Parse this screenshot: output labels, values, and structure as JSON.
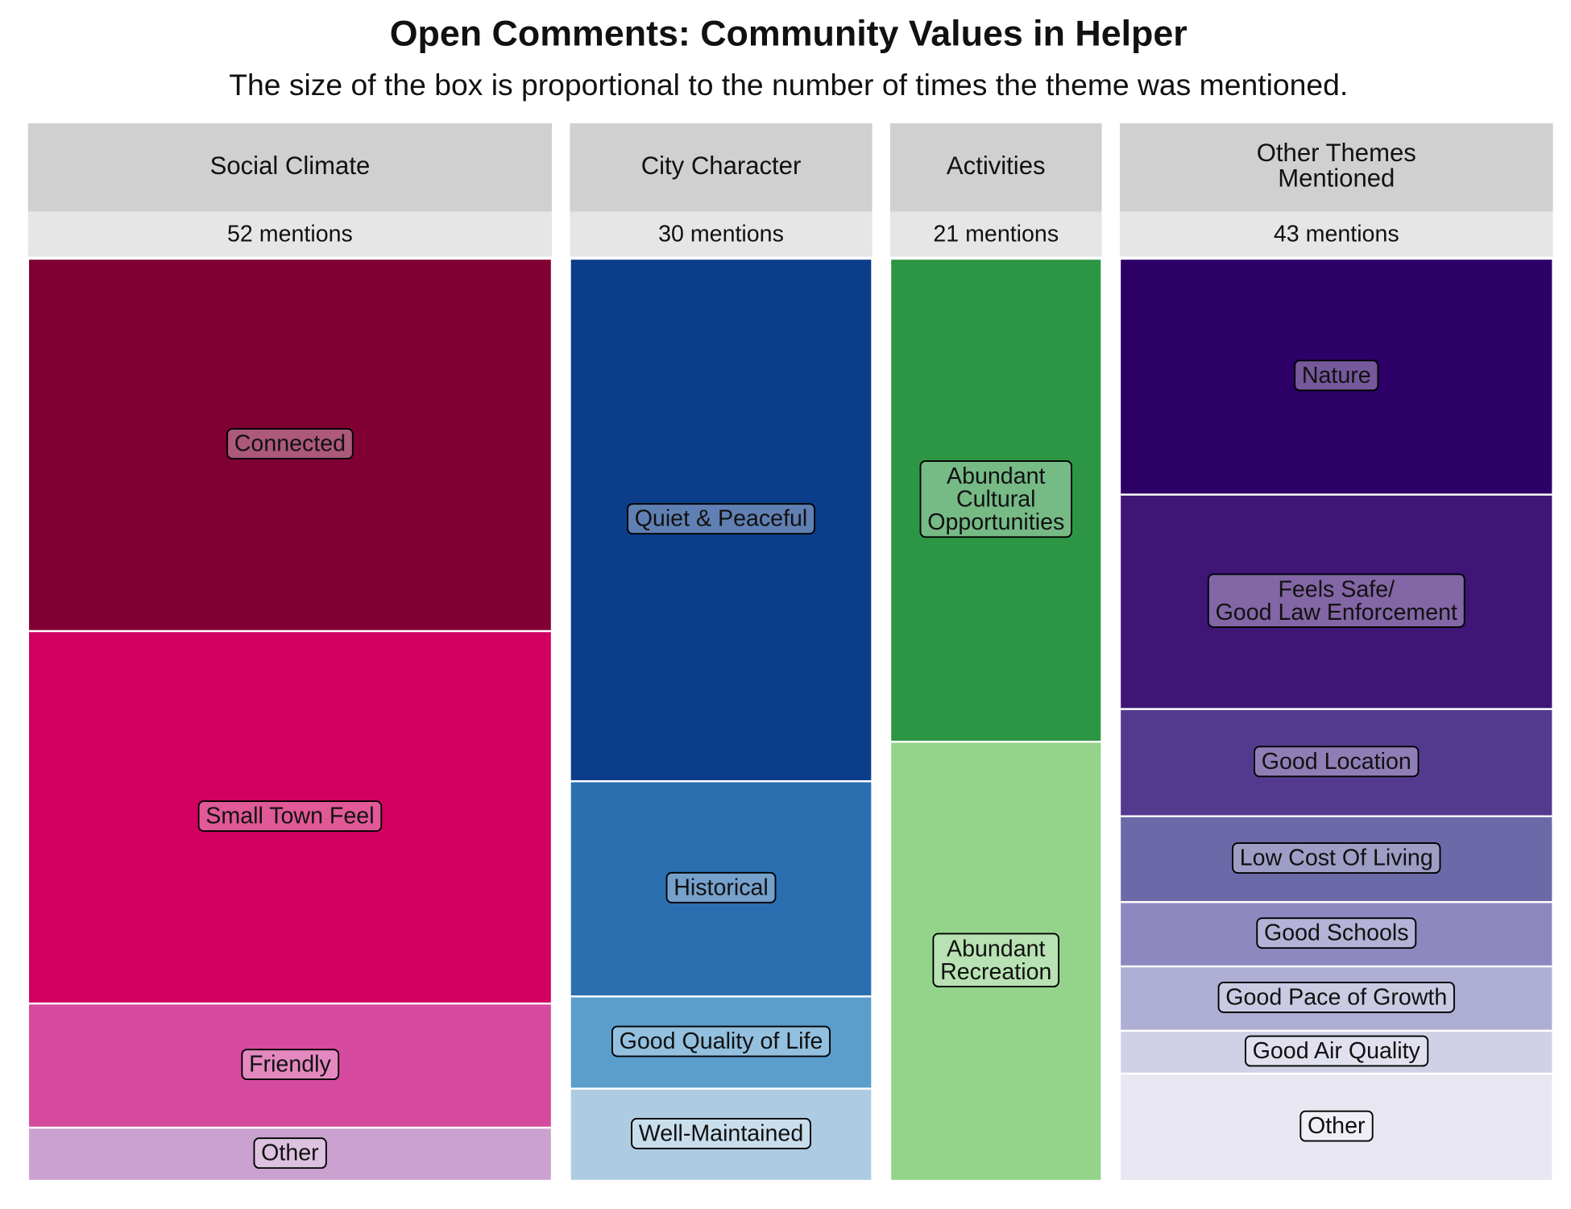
{
  "chart_data": {
    "type": "treemap",
    "title": "Open Comments: Community Values in Helper",
    "subtitle": "The size of the box is proportional to the number of times the theme was mentioned.",
    "groups": [
      {
        "name": "Social Climate",
        "total": 52,
        "total_label": "52 mentions",
        "categories": [
          "Connected",
          "Small Town Feel",
          "Friendly",
          "Other"
        ],
        "values": [
          21,
          21,
          7,
          3
        ],
        "colors": [
          "#800033",
          "#d10060",
          "#d54a9e",
          "#cba1cf"
        ]
      },
      {
        "name": "City Character",
        "total": 30,
        "total_label": "30 mentions",
        "categories": [
          "Quiet & Peaceful",
          "Historical",
          "Good Quality of Life",
          "Well-Maintained"
        ],
        "values": [
          17,
          7,
          3,
          3
        ],
        "colors": [
          "#0b3d8a",
          "#2b6fb1",
          "#5a9ecc",
          "#adcce2"
        ]
      },
      {
        "name": "Activities",
        "total": 21,
        "total_label": "21 mentions",
        "categories": [
          "Abundant\nCultural\nOpportunities",
          "Abundant\nRecreation"
        ],
        "values": [
          11,
          10
        ],
        "colors": [
          "#2d9645",
          "#93d38a"
        ]
      },
      {
        "name": "Other Themes\nMentioned",
        "total": 43,
        "total_label": "43 mentions",
        "categories": [
          "Nature",
          "Feels Safe/\nGood Law Enforcement",
          "Good Location",
          "Low Cost Of Living",
          "Good Schools",
          "Good Pace of Growth",
          "Good Air Quality",
          "Other"
        ],
        "values": [
          11,
          10,
          5,
          4,
          3,
          3,
          2,
          5
        ],
        "colors": [
          "#2c0066",
          "#3f1576",
          "#543a8f",
          "#6b69a8",
          "#8d89c0",
          "#aeaed5",
          "#d0d0e6",
          "#e8e7f1"
        ]
      }
    ]
  }
}
